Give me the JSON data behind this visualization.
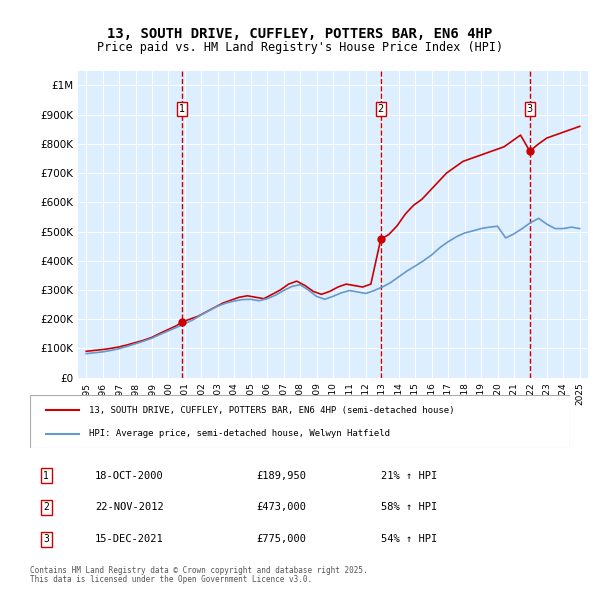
{
  "title": "13, SOUTH DRIVE, CUFFLEY, POTTERS BAR, EN6 4HP",
  "subtitle": "Price paid vs. HM Land Registry's House Price Index (HPI)",
  "legend_line1": "13, SOUTH DRIVE, CUFFLEY, POTTERS BAR, EN6 4HP (semi-detached house)",
  "legend_line2": "HPI: Average price, semi-detached house, Welwyn Hatfield",
  "transactions": [
    {
      "label": "1",
      "date": "18-OCT-2000",
      "price": 189950,
      "x": 2000.8,
      "pct": "21%",
      "dir": "↑"
    },
    {
      "label": "2",
      "date": "22-NOV-2012",
      "price": 473000,
      "x": 2012.9,
      "pct": "58%",
      "dir": "↑"
    },
    {
      "label": "3",
      "date": "15-DEC-2021",
      "price": 775000,
      "x": 2021.96,
      "pct": "54%",
      "dir": "↑"
    }
  ],
  "footer_line1": "Contains HM Land Registry data © Crown copyright and database right 2025.",
  "footer_line2": "This data is licensed under the Open Government Licence v3.0.",
  "red_color": "#cc0000",
  "blue_color": "#6699cc",
  "bg_color": "#ddeeff",
  "ylim": [
    0,
    1050000
  ],
  "xlim": [
    1994.5,
    2025.5
  ],
  "red_line_data_x": [
    1995.0,
    1995.5,
    1996.0,
    1996.5,
    1997.0,
    1997.5,
    1998.0,
    1998.5,
    1999.0,
    1999.5,
    2000.0,
    2000.5,
    2000.8,
    2001.3,
    2001.8,
    2002.3,
    2002.8,
    2003.3,
    2003.8,
    2004.3,
    2004.8,
    2005.3,
    2005.8,
    2006.3,
    2006.8,
    2007.3,
    2007.8,
    2008.3,
    2008.8,
    2009.3,
    2009.8,
    2010.3,
    2010.8,
    2011.3,
    2011.8,
    2012.3,
    2012.9,
    2013.4,
    2013.9,
    2014.4,
    2014.9,
    2015.4,
    2015.9,
    2016.4,
    2016.9,
    2017.4,
    2017.9,
    2018.4,
    2018.9,
    2019.4,
    2019.9,
    2020.4,
    2020.9,
    2021.4,
    2021.96,
    2022.5,
    2023.0,
    2023.5,
    2024.0,
    2024.5,
    2025.0
  ],
  "red_line_data_y": [
    90000,
    93000,
    96000,
    100000,
    105000,
    112000,
    120000,
    128000,
    138000,
    152000,
    165000,
    178000,
    189950,
    200000,
    210000,
    225000,
    240000,
    255000,
    265000,
    275000,
    280000,
    275000,
    270000,
    285000,
    300000,
    320000,
    330000,
    315000,
    295000,
    285000,
    295000,
    310000,
    320000,
    315000,
    310000,
    320000,
    473000,
    490000,
    520000,
    560000,
    590000,
    610000,
    640000,
    670000,
    700000,
    720000,
    740000,
    750000,
    760000,
    770000,
    780000,
    790000,
    810000,
    830000,
    775000,
    800000,
    820000,
    830000,
    840000,
    850000,
    860000
  ],
  "blue_line_data_x": [
    1995.0,
    1995.5,
    1996.0,
    1996.5,
    1997.0,
    1997.5,
    1998.0,
    1998.5,
    1999.0,
    1999.5,
    2000.0,
    2000.5,
    2001.0,
    2001.5,
    2002.0,
    2002.5,
    2003.0,
    2003.5,
    2004.0,
    2004.5,
    2005.0,
    2005.5,
    2006.0,
    2006.5,
    2007.0,
    2007.5,
    2008.0,
    2008.5,
    2009.0,
    2009.5,
    2010.0,
    2010.5,
    2011.0,
    2011.5,
    2012.0,
    2012.5,
    2013.0,
    2013.5,
    2014.0,
    2014.5,
    2015.0,
    2015.5,
    2016.0,
    2016.5,
    2017.0,
    2017.5,
    2018.0,
    2018.5,
    2019.0,
    2019.5,
    2020.0,
    2020.5,
    2021.0,
    2021.5,
    2022.0,
    2022.5,
    2023.0,
    2023.5,
    2024.0,
    2024.5,
    2025.0
  ],
  "blue_line_data_y": [
    82000,
    85000,
    88000,
    93000,
    99000,
    107000,
    116000,
    125000,
    135000,
    148000,
    160000,
    172000,
    185000,
    198000,
    215000,
    230000,
    245000,
    255000,
    262000,
    267000,
    268000,
    263000,
    270000,
    282000,
    298000,
    312000,
    318000,
    300000,
    278000,
    268000,
    278000,
    290000,
    298000,
    293000,
    288000,
    298000,
    310000,
    325000,
    345000,
    365000,
    382000,
    400000,
    420000,
    445000,
    465000,
    482000,
    495000,
    502000,
    510000,
    515000,
    518000,
    478000,
    492000,
    510000,
    530000,
    545000,
    525000,
    510000,
    510000,
    515000,
    510000
  ]
}
